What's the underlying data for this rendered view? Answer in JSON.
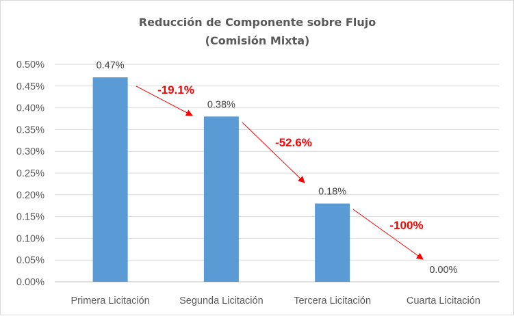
{
  "chart_data": {
    "type": "bar",
    "title": [
      "Reducción de Componente sobre Flujo",
      "(Comisión Mixta)"
    ],
    "categories": [
      "Primera Licitación",
      "Segunda Licitación",
      "Tercera Licitación",
      "Cuarta Licitación"
    ],
    "values": [
      0.0047,
      0.0038,
      0.0018,
      0.0
    ],
    "data_labels": [
      "0.47%",
      "0.38%",
      "0.18%",
      "0.00%"
    ],
    "ylim": [
      0,
      0.005
    ],
    "yticks": [
      "0.00%",
      "0.05%",
      "0.10%",
      "0.15%",
      "0.20%",
      "0.25%",
      "0.30%",
      "0.35%",
      "0.40%",
      "0.45%",
      "0.50%"
    ],
    "xlabel": "",
    "ylabel": "",
    "grid": true,
    "bar_color": "#5b9bd5",
    "annotations": [
      {
        "text": "-19.1%",
        "from": "Primera Licitación",
        "to": "Segunda Licitación"
      },
      {
        "text": "-52.6%",
        "from": "Segunda Licitación",
        "to": "Tercera Licitación"
      },
      {
        "text": "-100%",
        "from": "Tercera Licitación",
        "to": "Cuarta Licitación"
      }
    ],
    "annotation_color": "#ff0000"
  }
}
